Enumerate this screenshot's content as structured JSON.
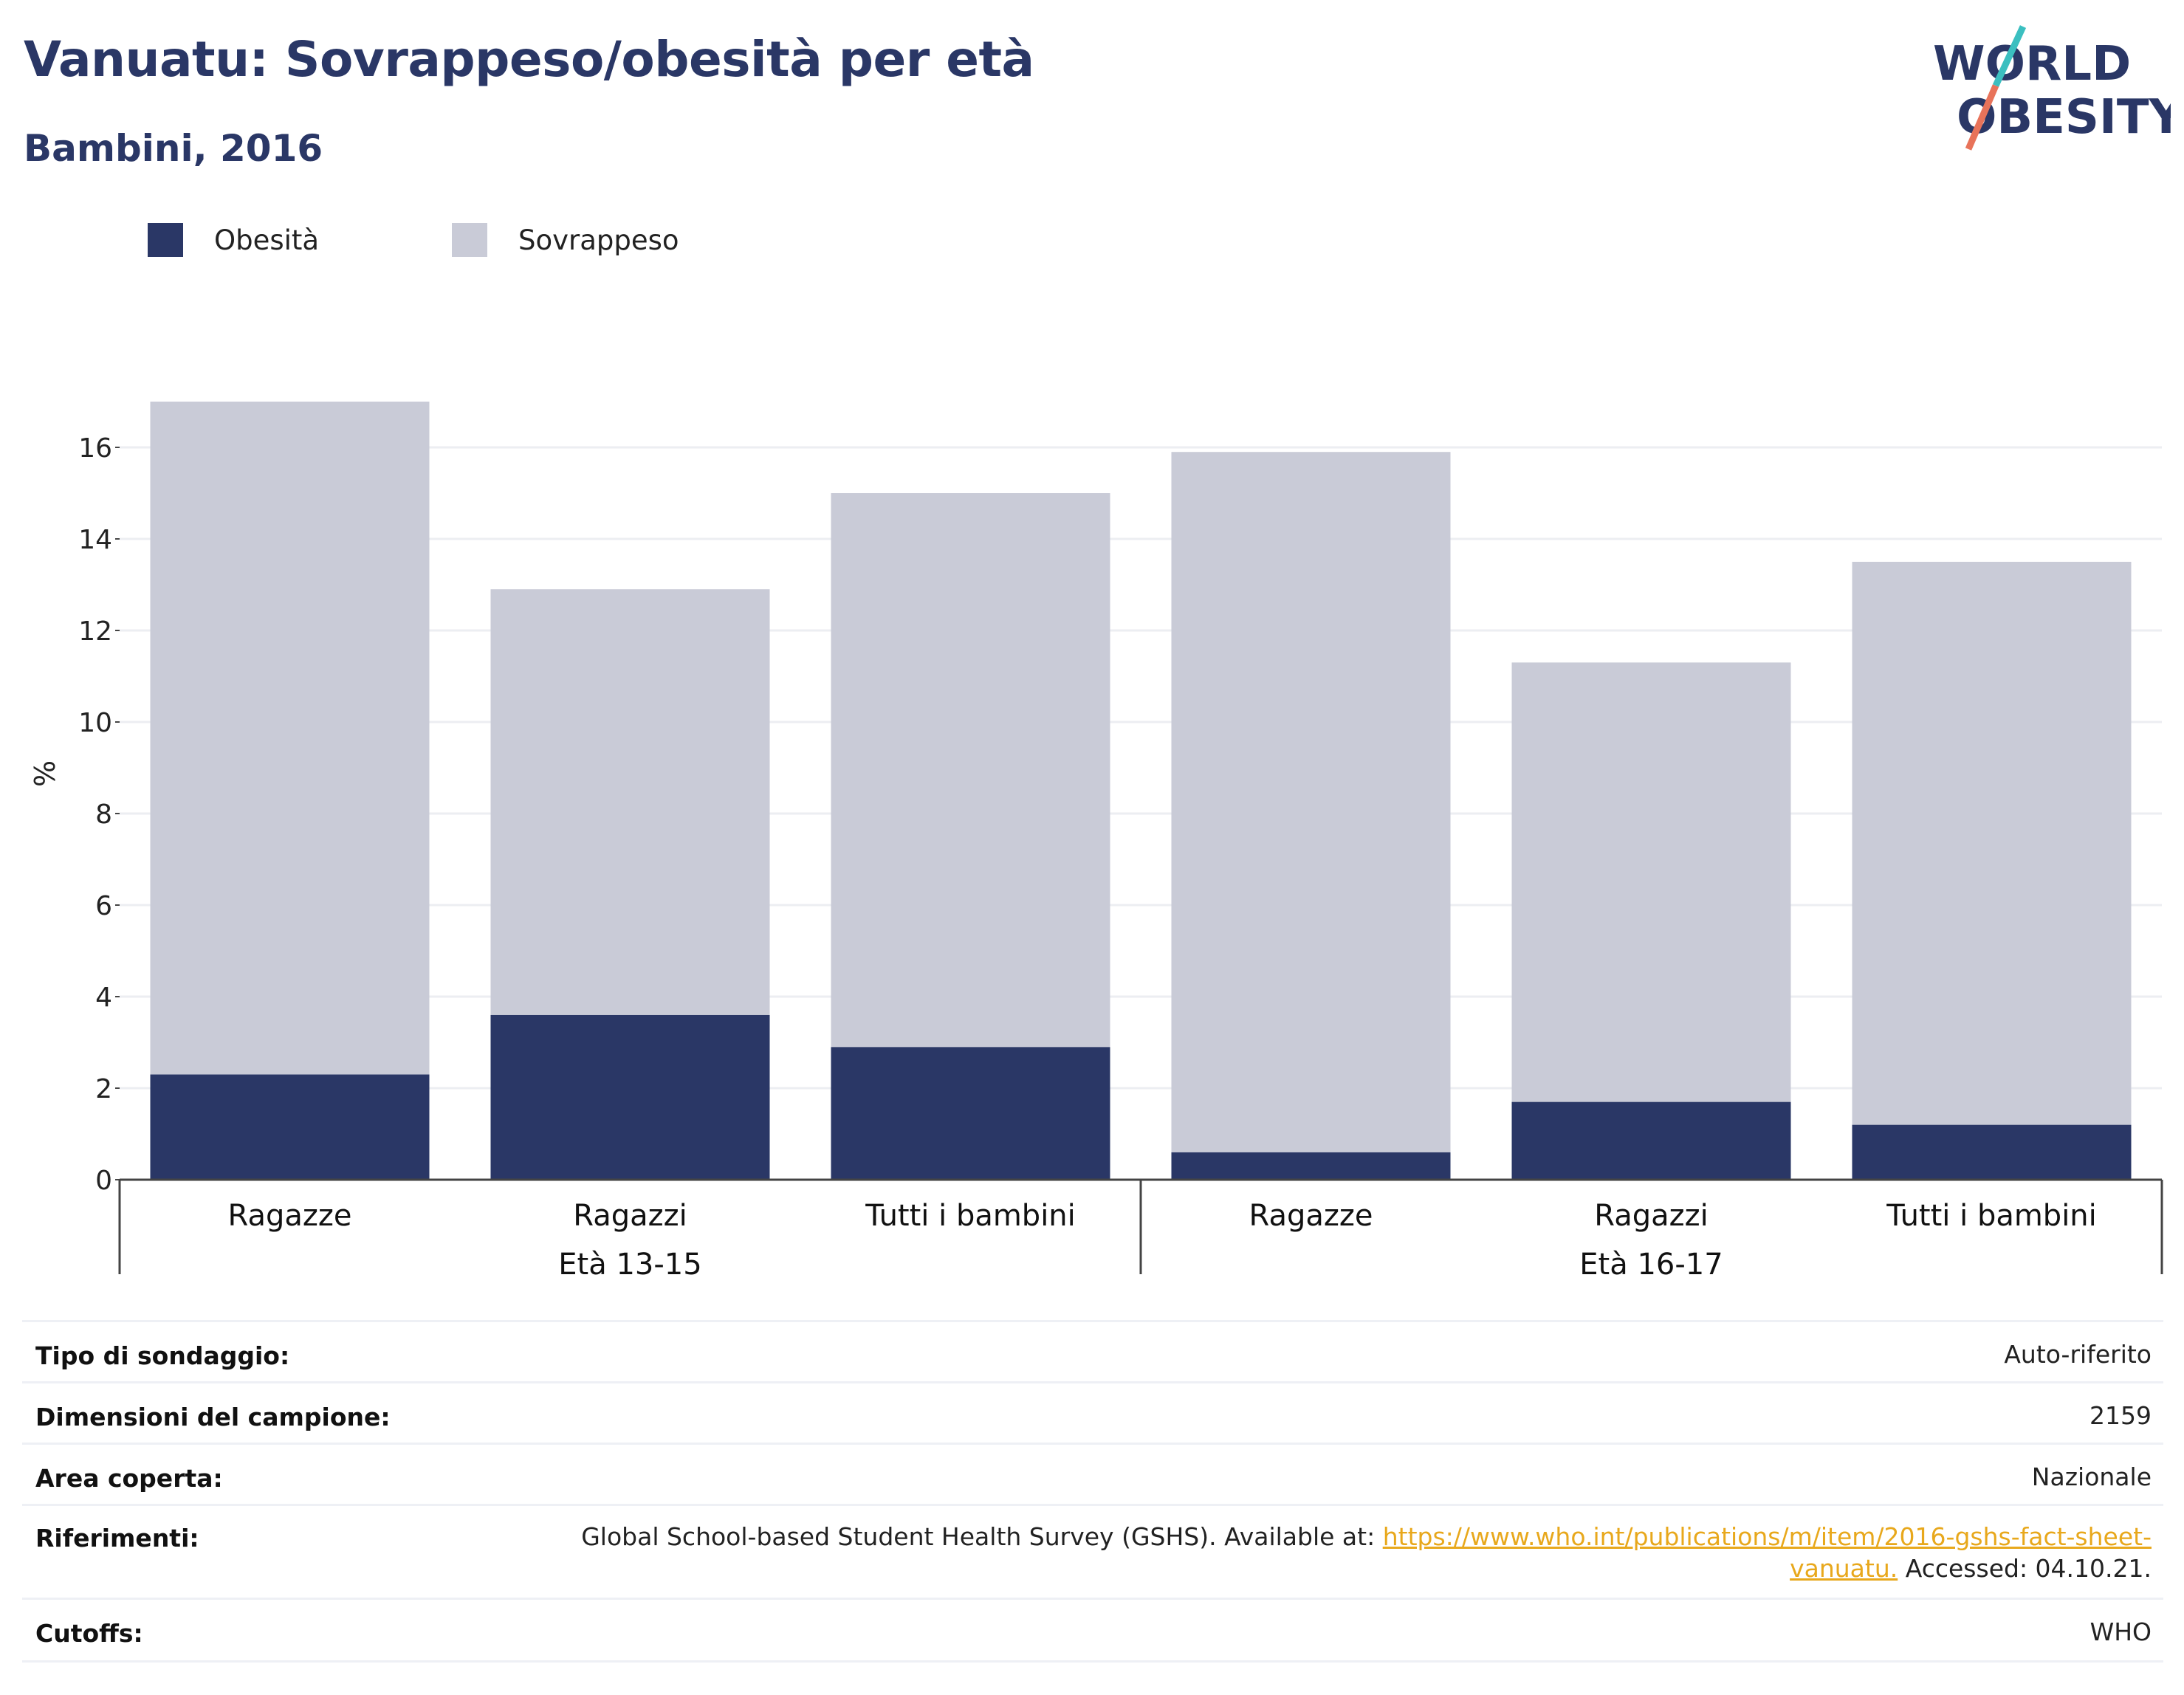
{
  "header": {
    "title": "Vanuatu: Sovrappeso/obesità per età",
    "subtitle": "Bambini, 2016"
  },
  "logo": {
    "line1": "WORLD",
    "line2": "OBESITY",
    "colors": {
      "text": "#2a3766",
      "slash_top": "#3bbfc0",
      "slash_bottom": "#e8735a"
    }
  },
  "chart_data": {
    "type": "bar",
    "stacked": true,
    "groups": [
      {
        "label": "Età 13-15",
        "categories": [
          "Ragazze",
          "Ragazzi",
          "Tutti i bambini"
        ]
      },
      {
        "label": "Età 16-17",
        "categories": [
          "Ragazze",
          "Ragazzi",
          "Tutti i bambini"
        ]
      }
    ],
    "categories": [
      "Ragazze",
      "Ragazzi",
      "Tutti i bambini",
      "Ragazze",
      "Ragazzi",
      "Tutti i bambini"
    ],
    "series": [
      {
        "name": "Obesità",
        "color": "#2a3766",
        "values": [
          2.3,
          3.6,
          2.9,
          0.6,
          1.7,
          1.2
        ]
      },
      {
        "name": "Sovrappeso",
        "color": "#c9cbd7",
        "values": [
          14.7,
          9.3,
          12.1,
          15.3,
          9.6,
          12.3
        ]
      }
    ],
    "ylabel": "%",
    "ylim": [
      0,
      17
    ],
    "yticks": [
      0,
      2,
      4,
      6,
      8,
      10,
      12,
      14,
      16
    ],
    "grid": true,
    "legend": "top-left"
  },
  "info": {
    "rows": [
      {
        "label": "Tipo di sondaggio:",
        "value": "Auto-riferito"
      },
      {
        "label": "Dimensioni del campione:",
        "value": "2159"
      },
      {
        "label": "Area coperta:",
        "value": "Nazionale"
      },
      {
        "label": "Riferimenti:",
        "value_prefix": "Global School-based Student Health Survey (GSHS). Available at: ",
        "link_line1": "https://www.who.int/publications/m/item/2016-gshs-fact-sheet-",
        "link_line2": "vanuatu.",
        "value_suffix": " Accessed: 04.10.21."
      },
      {
        "label": "Cutoffs:",
        "value": "WHO"
      }
    ]
  }
}
